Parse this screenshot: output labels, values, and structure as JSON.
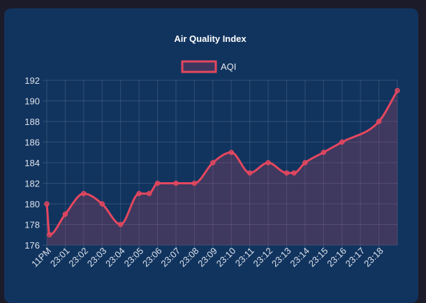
{
  "chart_data": {
    "type": "line",
    "title": "Air Quality Index",
    "legend": {
      "position": "top"
    },
    "series": [
      {
        "name": "AQI",
        "color": "#e5475e",
        "points": [
          {
            "t": 0.0,
            "y": 180
          },
          {
            "t": 0.15,
            "y": 177
          },
          {
            "t": 1.0,
            "y": 179
          },
          {
            "t": 2.0,
            "y": 181
          },
          {
            "t": 3.0,
            "y": 180
          },
          {
            "t": 4.0,
            "y": 178
          },
          {
            "t": 5.0,
            "y": 181
          },
          {
            "t": 5.55,
            "y": 181
          },
          {
            "t": 6.0,
            "y": 182
          },
          {
            "t": 7.0,
            "y": 182
          },
          {
            "t": 8.0,
            "y": 182
          },
          {
            "t": 9.0,
            "y": 184
          },
          {
            "t": 10.0,
            "y": 185
          },
          {
            "t": 11.0,
            "y": 183
          },
          {
            "t": 12.0,
            "y": 184
          },
          {
            "t": 13.0,
            "y": 183
          },
          {
            "t": 13.4,
            "y": 183
          },
          {
            "t": 14.0,
            "y": 184
          },
          {
            "t": 15.0,
            "y": 185
          },
          {
            "t": 16.0,
            "y": 186
          },
          {
            "t": 18.0,
            "y": 188
          },
          {
            "t": 19.0,
            "y": 191
          }
        ]
      }
    ],
    "x_ticks": [
      {
        "t": 0,
        "label": "11PM"
      },
      {
        "t": 1,
        "label": "23:01"
      },
      {
        "t": 2,
        "label": "23:02"
      },
      {
        "t": 3,
        "label": "23:03"
      },
      {
        "t": 4,
        "label": "23:04"
      },
      {
        "t": 5,
        "label": "23:05"
      },
      {
        "t": 6,
        "label": "23:06"
      },
      {
        "t": 7,
        "label": "23:07"
      },
      {
        "t": 8,
        "label": "23:08"
      },
      {
        "t": 9,
        "label": "23:09"
      },
      {
        "t": 10,
        "label": "23:10"
      },
      {
        "t": 11,
        "label": "23:11"
      },
      {
        "t": 12,
        "label": "23:12"
      },
      {
        "t": 13,
        "label": "23:13"
      },
      {
        "t": 14,
        "label": "23:14"
      },
      {
        "t": 15,
        "label": "23:15"
      },
      {
        "t": 16,
        "label": "23:16"
      },
      {
        "t": 17,
        "label": "23:17"
      },
      {
        "t": 18,
        "label": "23:18"
      }
    ],
    "xlim": [
      0,
      19
    ],
    "ylim": [
      176,
      192
    ],
    "y_ticks": [
      176,
      178,
      180,
      182,
      184,
      186,
      188,
      190,
      192
    ],
    "grid": true
  }
}
